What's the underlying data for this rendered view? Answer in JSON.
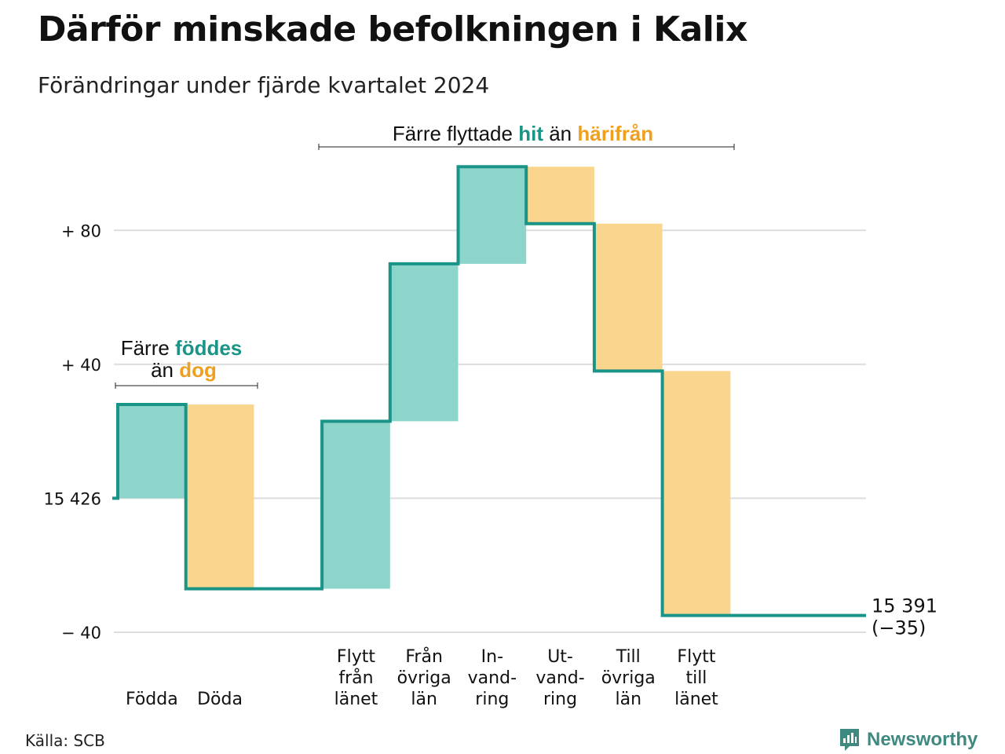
{
  "title": "Därför minskade befolkningen i Kalix",
  "subtitle": "Förändringar under fjärde kvartalet 2024",
  "source": "Källa: SCB",
  "brand": {
    "name": "Newsworthy",
    "icon": "chart-logo-icon"
  },
  "colors": {
    "increase_fill": "#8dd4ca",
    "decrease_fill": "#f9d58e",
    "step_line": "#1a9486",
    "accent_green": "#1a9486",
    "accent_orange": "#f0a020",
    "grid": "#dddddd"
  },
  "annotations": {
    "births": {
      "line1_prefix": "Färre ",
      "line1_hl": "föddes",
      "line2_prefix": "än ",
      "line2_hl": "dog"
    },
    "migration": {
      "prefix": "Färre flyttade ",
      "hl1": "hit",
      "mid": " än ",
      "hl2": "härifrån"
    }
  },
  "chart_data": {
    "type": "waterfall",
    "title": "Därför minskade befolkningen i Kalix",
    "subtitle": "Förändringar under fjärde kvartalet 2024",
    "start_value": 15426,
    "end_value": 15391,
    "net_change": -35,
    "end_label_line1": "15 391",
    "end_label_line2": "(−35)",
    "ylim": [
      -40,
      100
    ],
    "yticks": [
      {
        "value": -40,
        "label": "− 40"
      },
      {
        "value": 0,
        "label": "15 426"
      },
      {
        "value": 40,
        "label": "+ 40"
      },
      {
        "value": 80,
        "label": "+ 80"
      }
    ],
    "grid": true,
    "categories": [
      {
        "label": [
          "Födda"
        ],
        "change": 28,
        "kind": "increase"
      },
      {
        "label": [
          "Döda"
        ],
        "change": -55,
        "kind": "decrease"
      },
      {
        "label": [],
        "change": 0,
        "kind": "gap"
      },
      {
        "label": [
          "Flytt",
          "från",
          "länet"
        ],
        "change": 50,
        "kind": "increase"
      },
      {
        "label": [
          "Från",
          "övriga",
          "län"
        ],
        "change": 47,
        "kind": "increase"
      },
      {
        "label": [
          "In-",
          "vand-",
          "ring"
        ],
        "change": 29,
        "kind": "increase"
      },
      {
        "label": [
          "Ut-",
          "vand-",
          "ring"
        ],
        "change": -17,
        "kind": "decrease"
      },
      {
        "label": [
          "Till",
          "övriga",
          "län"
        ],
        "change": -44,
        "kind": "decrease"
      },
      {
        "label": [
          "Flytt",
          "till",
          "länet"
        ],
        "change": -73,
        "kind": "decrease"
      }
    ]
  }
}
